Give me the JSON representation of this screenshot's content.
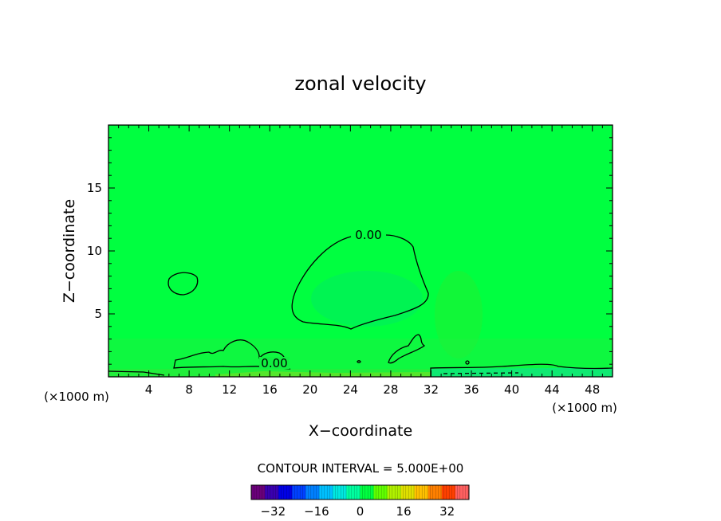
{
  "chart_data": {
    "type": "heatmap",
    "title": "zonal velocity",
    "xlabel": "X−coordinate",
    "ylabel": "Z−coordinate",
    "x_units_left": "(×1000 m)",
    "x_units_right": "(×1000 m)",
    "xlim": [
      0,
      50
    ],
    "ylim": [
      0,
      20
    ],
    "x_ticks": [
      4,
      8,
      12,
      16,
      20,
      24,
      28,
      32,
      36,
      40,
      44,
      48
    ],
    "y_ticks": [
      5,
      10,
      15
    ],
    "background_value": 0,
    "background_color": "#00ff40",
    "contour_labels": [
      {
        "text": "0.00",
        "x": 25.5,
        "z": 11.0
      },
      {
        "text": "0.00",
        "x": 16.5,
        "z": 1.0
      }
    ],
    "contour_interval_text": "CONTOUR INTERVAL = 5.000E+00",
    "colorbar": {
      "range": [
        -40,
        40
      ],
      "tick_labels": [
        "−32",
        "−16",
        "0",
        "16",
        "32"
      ],
      "tick_values": [
        -32,
        -16,
        0,
        16,
        32
      ],
      "colors": [
        "#6a007a",
        "#3a00b0",
        "#0000e6",
        "#0040ff",
        "#0080ff",
        "#00c0ff",
        "#00e8e0",
        "#00ffa0",
        "#00ff40",
        "#60ff00",
        "#b0f000",
        "#e0e000",
        "#ffc000",
        "#ff8000",
        "#ff4000",
        "#ff6060"
      ]
    }
  }
}
